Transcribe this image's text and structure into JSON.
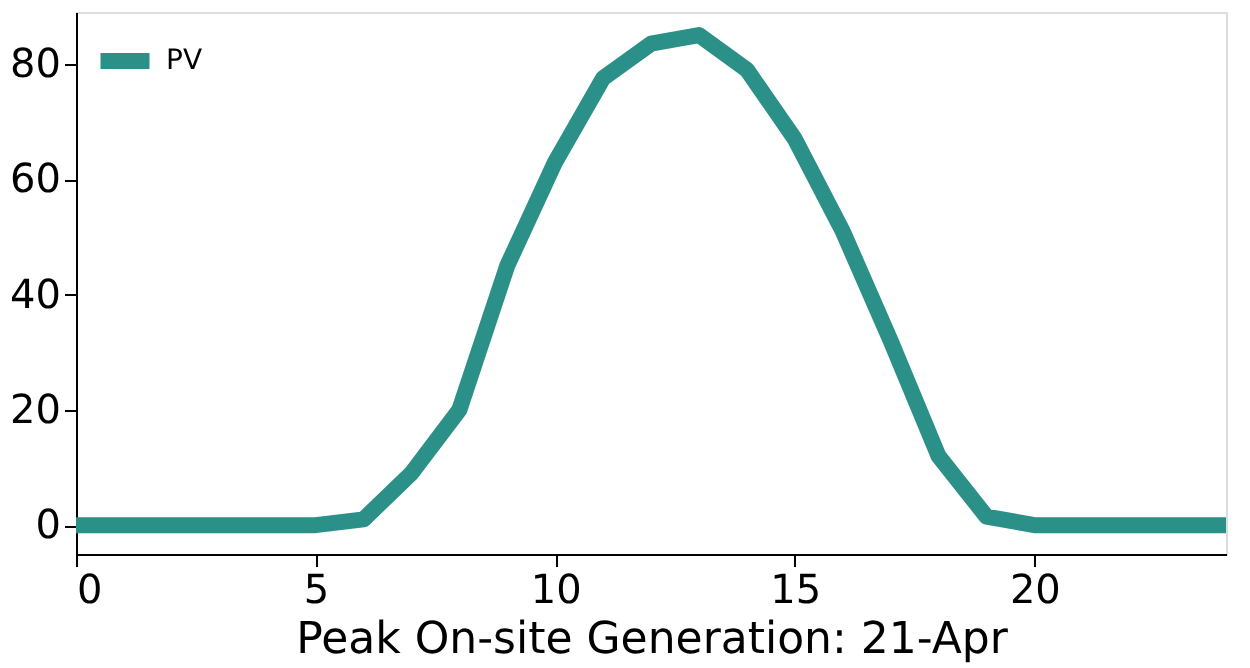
{
  "chart_data": {
    "type": "line",
    "xlabel": "Peak On-site Generation: 21-Apr",
    "x": [
      0,
      1,
      2,
      3,
      4,
      5,
      6,
      7,
      8,
      9,
      10,
      11,
      12,
      13,
      14,
      15,
      16,
      17,
      18,
      19,
      20,
      21,
      22,
      23,
      24
    ],
    "series": [
      {
        "name": "PV",
        "color": "#2a9088",
        "values": [
          0,
          0,
          0,
          0,
          0,
          0,
          1,
          9,
          20,
          45,
          63,
          77.5,
          83.5,
          85,
          79,
          67,
          51,
          32,
          12,
          1.5,
          0,
          0,
          0,
          0,
          0
        ]
      }
    ],
    "xlim": [
      0,
      24
    ],
    "xticks": [
      0,
      5,
      10,
      15,
      20
    ],
    "ylim": [
      -5,
      89
    ],
    "yticks": [
      0,
      20,
      40,
      60,
      80
    ],
    "grid": false,
    "legend": "top left",
    "marker": "none",
    "line_style": "solid"
  }
}
